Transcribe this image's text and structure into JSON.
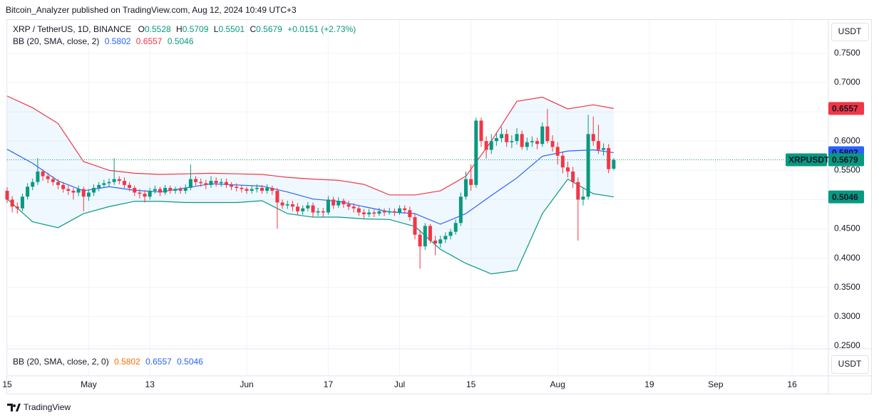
{
  "header": {
    "text": "Bitcoin_Analyzer published on TradingView.com, Aug 12, 2024 10:49 UTC+3"
  },
  "footer": {
    "brand": "TradingView"
  },
  "chart_data": {
    "type": "candlestick",
    "title": "XRP / TetherUS, 1D, BINANCE",
    "ohlc_labels": [
      "O",
      "H",
      "L",
      "C"
    ],
    "change_label": "+0.0151 (+2.73%)",
    "symbol_label": "XRPUSDT",
    "currency": "USDT",
    "up_color": "#089981",
    "down_color": "#f23645",
    "categories": [
      "Apr 15",
      "Apr 16",
      "Apr 17",
      "Apr 18",
      "Apr 19",
      "Apr 20",
      "Apr 21",
      "Apr 22",
      "Apr 23",
      "Apr 24",
      "Apr 25",
      "Apr 26",
      "Apr 27",
      "Apr 28",
      "Apr 29",
      "Apr 30",
      "May 1",
      "May 2",
      "May 3",
      "May 4",
      "May 5",
      "May 6",
      "May 7",
      "May 8",
      "May 9",
      "May 10",
      "May 11",
      "May 12",
      "May 13",
      "May 14",
      "May 15",
      "May 16",
      "May 17",
      "May 18",
      "May 19",
      "May 20",
      "May 21",
      "May 22",
      "May 23",
      "May 24",
      "May 25",
      "May 26",
      "May 27",
      "May 28",
      "May 29",
      "May 30",
      "May 31",
      "Jun 1",
      "Jun 2",
      "Jun 3",
      "Jun 4",
      "Jun 5",
      "Jun 6",
      "Jun 7",
      "Jun 8",
      "Jun 9",
      "Jun 10",
      "Jun 11",
      "Jun 12",
      "Jun 13",
      "Jun 14",
      "Jun 15",
      "Jun 16",
      "Jun 17",
      "Jun 18",
      "Jun 19",
      "Jun 20",
      "Jun 21",
      "Jun 22",
      "Jun 23",
      "Jun 24",
      "Jun 25",
      "Jun 26",
      "Jun 27",
      "Jun 28",
      "Jun 29",
      "Jun 30",
      "Jul 1",
      "Jul 2",
      "Jul 3",
      "Jul 4",
      "Jul 5",
      "Jul 6",
      "Jul 7",
      "Jul 8",
      "Jul 9",
      "Jul 10",
      "Jul 11",
      "Jul 12",
      "Jul 13",
      "Jul 14",
      "Jul 15",
      "Jul 16",
      "Jul 17",
      "Jul 18",
      "Jul 19",
      "Jul 20",
      "Jul 21",
      "Jul 22",
      "Jul 23",
      "Jul 24",
      "Jul 25",
      "Jul 26",
      "Jul 27",
      "Jul 28",
      "Jul 29",
      "Jul 30",
      "Jul 31",
      "Aug 1",
      "Aug 2",
      "Aug 3",
      "Aug 4",
      "Aug 5",
      "Aug 6",
      "Aug 7",
      "Aug 8",
      "Aug 9",
      "Aug 10",
      "Aug 11",
      "Aug 12"
    ],
    "open": [
      0.515,
      0.5,
      0.488,
      0.485,
      0.505,
      0.522,
      0.53,
      0.548,
      0.54,
      0.535,
      0.53,
      0.525,
      0.518,
      0.515,
      0.512,
      0.518,
      0.505,
      0.512,
      0.52,
      0.525,
      0.528,
      0.53,
      0.535,
      0.532,
      0.525,
      0.52,
      0.512,
      0.51,
      0.505,
      0.515,
      0.518,
      0.512,
      0.52,
      0.515,
      0.518,
      0.515,
      0.52,
      0.535,
      0.53,
      0.528,
      0.525,
      0.532,
      0.528,
      0.53,
      0.525,
      0.522,
      0.52,
      0.518,
      0.515,
      0.518,
      0.52,
      0.515,
      0.52,
      0.515,
      0.495,
      0.49,
      0.492,
      0.488,
      0.48,
      0.485,
      0.49,
      0.478,
      0.48,
      0.478,
      0.5,
      0.49,
      0.498,
      0.492,
      0.488,
      0.485,
      0.478,
      0.475,
      0.478,
      0.476,
      0.48,
      0.478,
      0.48,
      0.478,
      0.485,
      0.482,
      0.47,
      0.44,
      0.42,
      0.455,
      0.43,
      0.425,
      0.432,
      0.438,
      0.445,
      0.46,
      0.505,
      0.535,
      0.525,
      0.635,
      0.6,
      0.585,
      0.6,
      0.605,
      0.612,
      0.598,
      0.6,
      0.612,
      0.59,
      0.598,
      0.6,
      0.595,
      0.625,
      0.6,
      0.59,
      0.575,
      0.555,
      0.548,
      0.53,
      0.5,
      0.505,
      0.612,
      0.6,
      0.585,
      0.588,
      0.5528
    ],
    "high": [
      0.521,
      0.506,
      0.495,
      0.51,
      0.528,
      0.536,
      0.571,
      0.552,
      0.546,
      0.54,
      0.535,
      0.53,
      0.524,
      0.52,
      0.524,
      0.522,
      0.518,
      0.526,
      0.53,
      0.534,
      0.536,
      0.571,
      0.54,
      0.538,
      0.53,
      0.524,
      0.518,
      0.516,
      0.52,
      0.524,
      0.522,
      0.525,
      0.524,
      0.522,
      0.522,
      0.526,
      0.56,
      0.54,
      0.536,
      0.534,
      0.54,
      0.538,
      0.536,
      0.536,
      0.53,
      0.528,
      0.525,
      0.522,
      0.524,
      0.526,
      0.525,
      0.526,
      0.524,
      0.52,
      0.5,
      0.498,
      0.498,
      0.494,
      0.49,
      0.496,
      0.495,
      0.486,
      0.486,
      0.506,
      0.505,
      0.504,
      0.502,
      0.498,
      0.494,
      0.49,
      0.484,
      0.484,
      0.483,
      0.486,
      0.485,
      0.486,
      0.485,
      0.49,
      0.49,
      0.488,
      0.475,
      0.448,
      0.46,
      0.458,
      0.438,
      0.438,
      0.444,
      0.45,
      0.466,
      0.512,
      0.548,
      0.56,
      0.64,
      0.64,
      0.608,
      0.612,
      0.615,
      0.624,
      0.62,
      0.61,
      0.622,
      0.618,
      0.606,
      0.608,
      0.606,
      0.632,
      0.655,
      0.61,
      0.598,
      0.582,
      0.565,
      0.556,
      0.538,
      0.52,
      0.645,
      0.642,
      0.628,
      0.596,
      0.595,
      0.5709
    ],
    "low": [
      0.494,
      0.478,
      0.476,
      0.48,
      0.5,
      0.516,
      0.525,
      0.532,
      0.528,
      0.524,
      0.518,
      0.512,
      0.508,
      0.5,
      0.506,
      0.48,
      0.498,
      0.506,
      0.514,
      0.52,
      0.522,
      0.525,
      0.526,
      0.52,
      0.514,
      0.506,
      0.502,
      0.495,
      0.5,
      0.51,
      0.506,
      0.508,
      0.51,
      0.51,
      0.51,
      0.51,
      0.516,
      0.524,
      0.522,
      0.518,
      0.52,
      0.522,
      0.522,
      0.52,
      0.516,
      0.514,
      0.512,
      0.51,
      0.51,
      0.512,
      0.51,
      0.51,
      0.508,
      0.45,
      0.484,
      0.484,
      0.48,
      0.474,
      0.474,
      0.48,
      0.47,
      0.472,
      0.47,
      0.474,
      0.484,
      0.486,
      0.486,
      0.482,
      0.478,
      0.472,
      0.468,
      0.47,
      0.47,
      0.472,
      0.472,
      0.474,
      0.472,
      0.474,
      0.476,
      0.464,
      0.432,
      0.382,
      0.414,
      0.425,
      0.405,
      0.418,
      0.426,
      0.432,
      0.44,
      0.455,
      0.5,
      0.515,
      0.52,
      0.59,
      0.57,
      0.578,
      0.592,
      0.598,
      0.59,
      0.588,
      0.594,
      0.585,
      0.584,
      0.59,
      0.586,
      0.59,
      0.596,
      0.582,
      0.56,
      0.545,
      0.538,
      0.52,
      0.43,
      0.49,
      0.5,
      0.592,
      0.578,
      0.575,
      0.545,
      0.5501
    ],
    "close": [
      0.5,
      0.488,
      0.485,
      0.505,
      0.522,
      0.53,
      0.548,
      0.54,
      0.535,
      0.53,
      0.525,
      0.518,
      0.515,
      0.512,
      0.518,
      0.505,
      0.512,
      0.52,
      0.525,
      0.528,
      0.53,
      0.535,
      0.532,
      0.525,
      0.52,
      0.512,
      0.51,
      0.505,
      0.515,
      0.518,
      0.512,
      0.52,
      0.515,
      0.518,
      0.515,
      0.52,
      0.535,
      0.53,
      0.528,
      0.525,
      0.532,
      0.528,
      0.53,
      0.525,
      0.522,
      0.52,
      0.518,
      0.515,
      0.518,
      0.52,
      0.515,
      0.52,
      0.515,
      0.495,
      0.49,
      0.492,
      0.488,
      0.48,
      0.485,
      0.49,
      0.478,
      0.48,
      0.478,
      0.5,
      0.49,
      0.498,
      0.492,
      0.488,
      0.485,
      0.478,
      0.475,
      0.478,
      0.476,
      0.48,
      0.478,
      0.48,
      0.478,
      0.485,
      0.482,
      0.47,
      0.44,
      0.42,
      0.455,
      0.43,
      0.425,
      0.432,
      0.438,
      0.445,
      0.46,
      0.505,
      0.535,
      0.525,
      0.635,
      0.6,
      0.585,
      0.6,
      0.605,
      0.612,
      0.598,
      0.6,
      0.612,
      0.59,
      0.598,
      0.6,
      0.595,
      0.625,
      0.6,
      0.59,
      0.575,
      0.555,
      0.548,
      0.53,
      0.5,
      0.505,
      0.612,
      0.6,
      0.585,
      0.588,
      0.552,
      0.5679
    ],
    "bb": {
      "name": "BB (20, SMA, close, 2)",
      "pane_name": "BB (20, SMA, close, 2, 0)",
      "x": [
        "Apr 15",
        "Apr 20",
        "Apr 25",
        "Apr 30",
        "May 5",
        "May 10",
        "May 15",
        "May 20",
        "May 25",
        "May 30",
        "Jun 4",
        "Jun 9",
        "Jun 14",
        "Jun 19",
        "Jun 24",
        "Jun 29",
        "Jul 4",
        "Jul 9",
        "Jul 14",
        "Jul 19",
        "Jul 24",
        "Jul 29",
        "Aug 3",
        "Aug 8",
        "Aug 12"
      ],
      "basis": {
        "color": "#2962ff",
        "values": [
          0.586,
          0.562,
          0.532,
          0.515,
          0.522,
          0.516,
          0.513,
          0.52,
          0.527,
          0.525,
          0.523,
          0.513,
          0.501,
          0.497,
          0.488,
          0.479,
          0.476,
          0.458,
          0.476,
          0.507,
          0.537,
          0.574,
          0.583,
          0.585,
          0.5802
        ]
      },
      "upper": {
        "color": "#f23645",
        "values": [
          0.677,
          0.657,
          0.63,
          0.565,
          0.55,
          0.545,
          0.543,
          0.544,
          0.545,
          0.544,
          0.543,
          0.538,
          0.535,
          0.533,
          0.526,
          0.508,
          0.508,
          0.515,
          0.54,
          0.6,
          0.668,
          0.675,
          0.655,
          0.662,
          0.6557
        ]
      },
      "lower": {
        "color": "#089981",
        "values": [
          0.501,
          0.462,
          0.452,
          0.476,
          0.488,
          0.497,
          0.497,
          0.495,
          0.495,
          0.495,
          0.498,
          0.476,
          0.47,
          0.47,
          0.467,
          0.466,
          0.454,
          0.415,
          0.391,
          0.373,
          0.379,
          0.476,
          0.535,
          0.51,
          0.5046
        ]
      }
    },
    "ylim": [
      0.245,
      0.807
    ],
    "yticks": [
      {
        "value": 0.25,
        "label": "0.2500"
      },
      {
        "value": 0.3,
        "label": "0.3000"
      },
      {
        "value": 0.35,
        "label": "0.3500"
      },
      {
        "value": 0.4,
        "label": "0.4000"
      },
      {
        "value": 0.45,
        "label": "0.4500"
      },
      {
        "value": 0.5,
        "label": "0.5000"
      },
      {
        "value": 0.55,
        "label": "0.5500"
      },
      {
        "value": 0.6,
        "label": "0.6000"
      },
      {
        "value": 0.65,
        "label": "0.6500"
      },
      {
        "value": 0.7,
        "label": "0.7000"
      },
      {
        "value": 0.75,
        "label": "0.7500"
      }
    ],
    "xticks": [
      {
        "value": "Apr 15",
        "label": "15"
      },
      {
        "value": "May 1",
        "label": "May"
      },
      {
        "value": "May 13",
        "label": "13"
      },
      {
        "value": "Jun 1",
        "label": "Jun"
      },
      {
        "value": "Jun 17",
        "label": "17"
      },
      {
        "value": "Jul 1",
        "label": "Jul"
      },
      {
        "value": "Jul 15",
        "label": "15"
      },
      {
        "value": "Aug 1",
        "label": "Aug"
      },
      {
        "value": "Aug 19",
        "label": "19"
      },
      {
        "value": "Sep 1",
        "label": "Sep"
      },
      {
        "value": "Sep 16",
        "label": "16"
      }
    ],
    "grid": true
  }
}
